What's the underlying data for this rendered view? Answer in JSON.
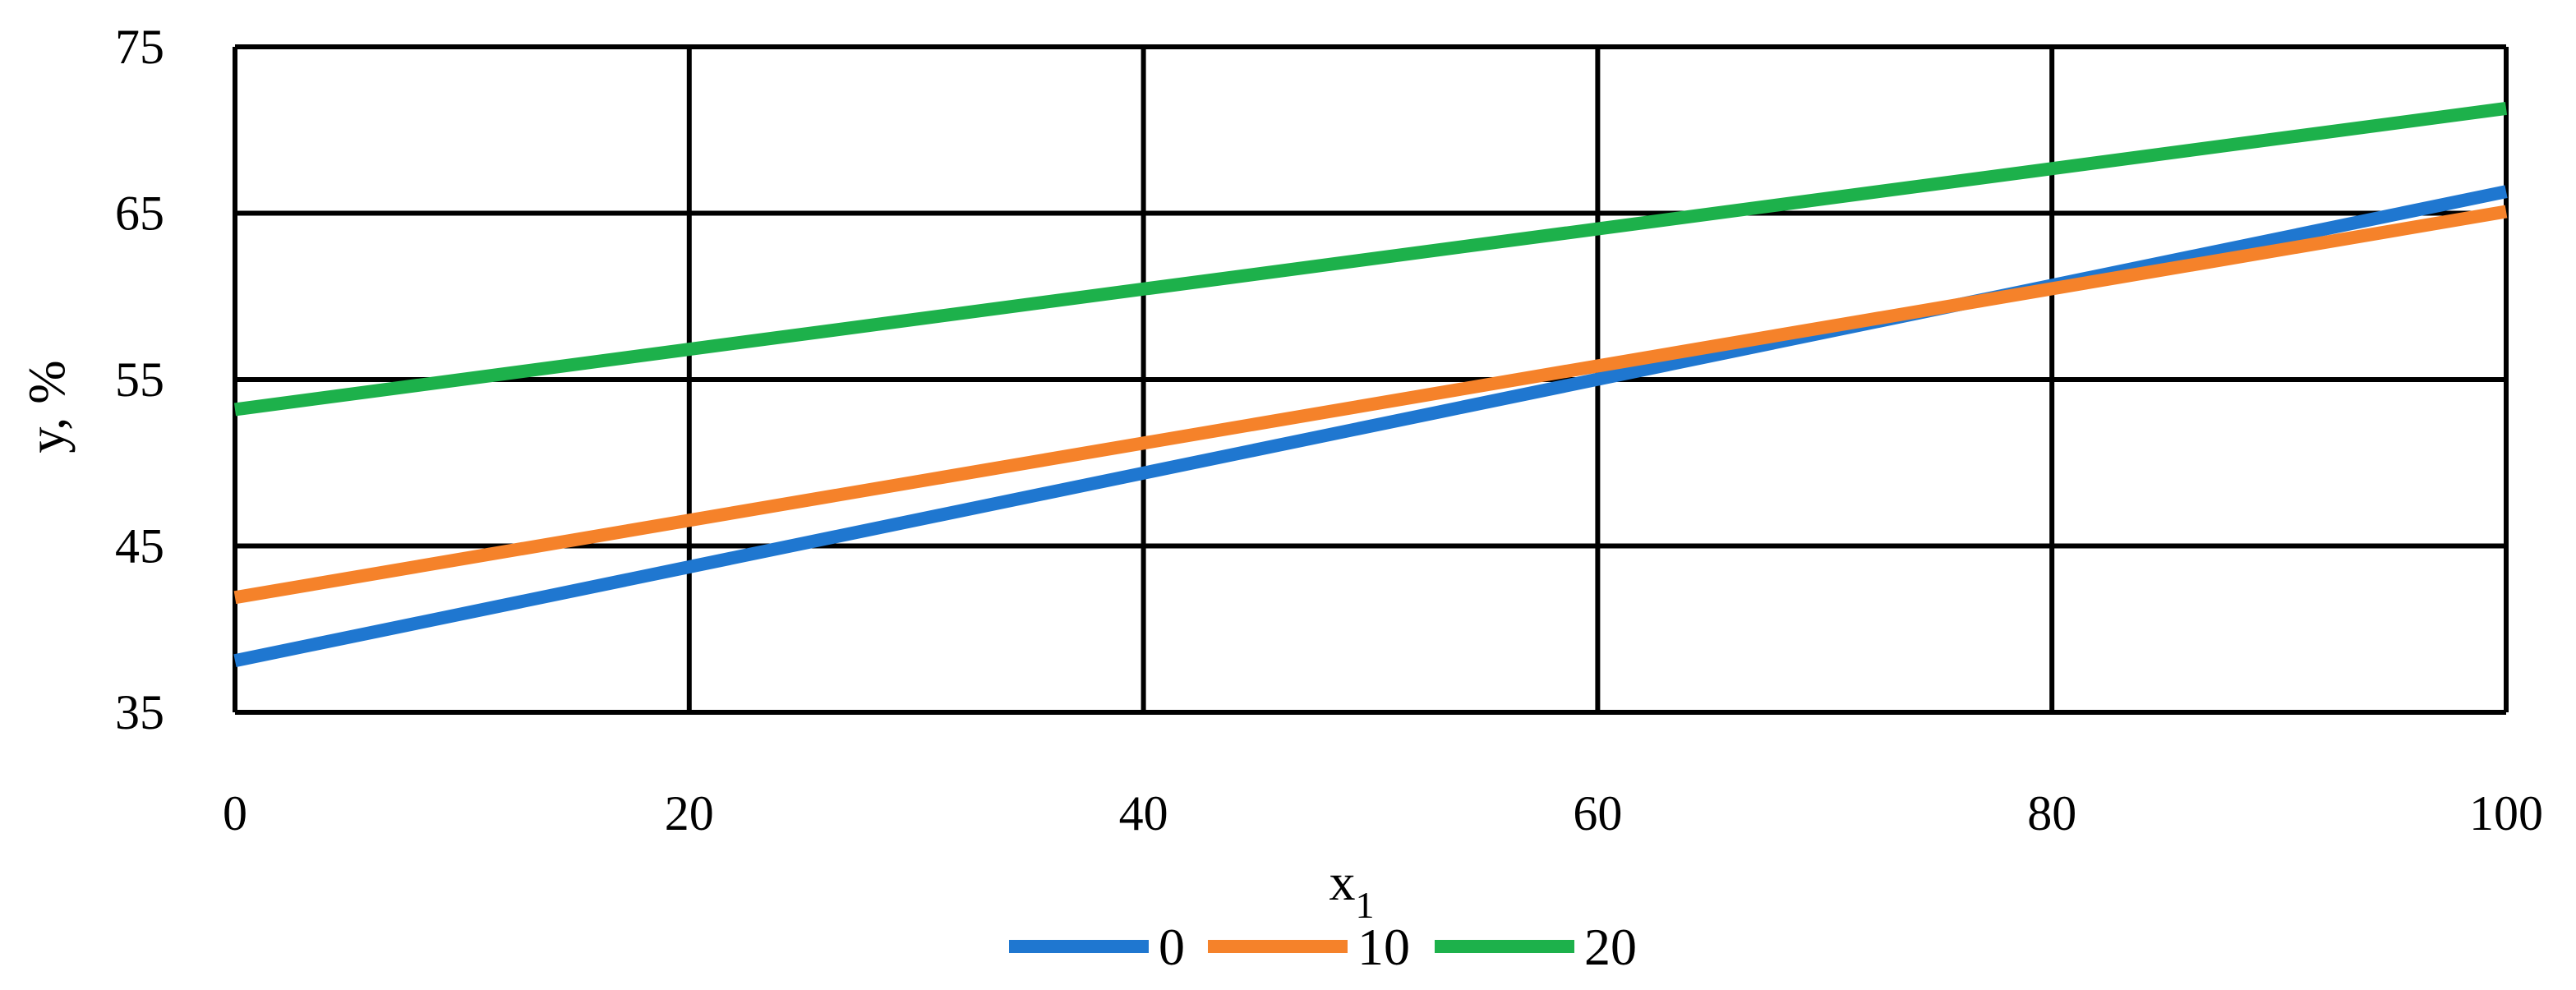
{
  "chart_data": {
    "type": "line",
    "title": "",
    "xlabel": "x",
    "xlabel_subscript": "1",
    "ylabel": "y, %",
    "xlim": [
      0,
      100
    ],
    "ylim": [
      35,
      75
    ],
    "xticks": [
      "0",
      "20",
      "40",
      "60",
      "80",
      "100"
    ],
    "yticks": [
      "35",
      "45",
      "55",
      "65",
      "75"
    ],
    "grid": true,
    "legend_position": "bottom",
    "x": [
      0,
      100
    ],
    "series": [
      {
        "name": "0",
        "color": "#1f77d0",
        "values": [
          38.1,
          66.3
        ]
      },
      {
        "name": "10",
        "color": "#f5822a",
        "values": [
          41.9,
          65.1
        ]
      },
      {
        "name": "20",
        "color": "#1db14b",
        "values": [
          53.2,
          71.3
        ]
      }
    ]
  }
}
